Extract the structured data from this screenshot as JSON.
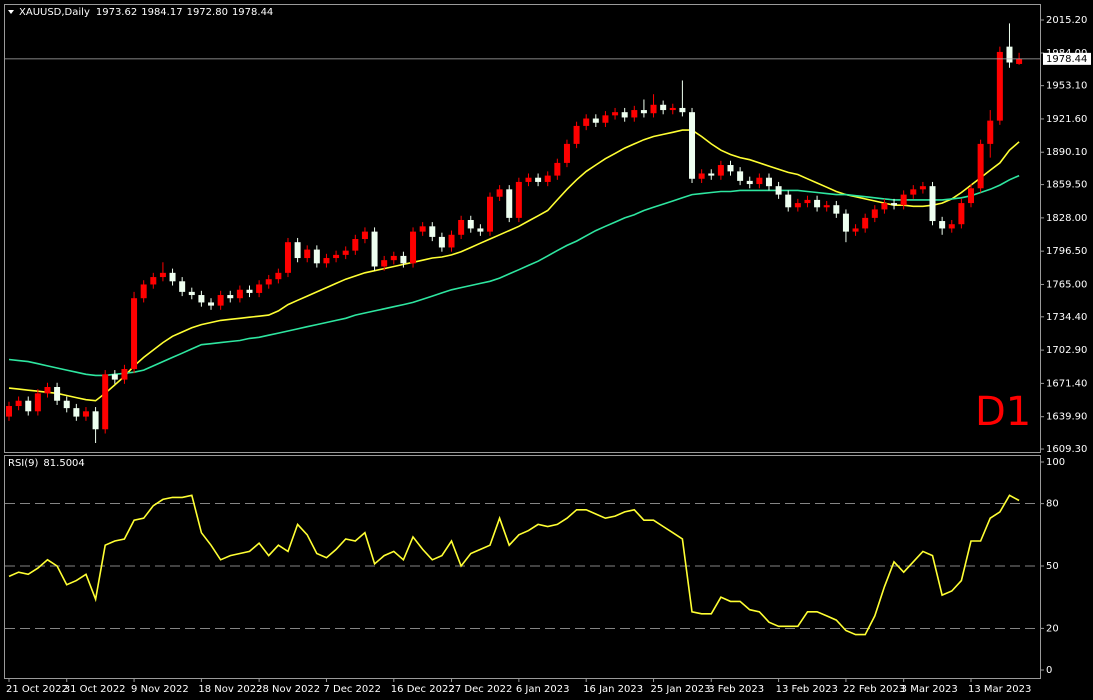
{
  "chart_data": [
    {
      "type": "candlestick",
      "title": "XAUUSD,Daily",
      "last_bar_labels": [
        "1973.62",
        "1984.17",
        "1972.80",
        "1978.44"
      ],
      "categories": [
        "21 Oct 2022",
        null,
        null,
        null,
        null,
        null,
        "31 Oct 2022",
        null,
        null,
        null,
        null,
        null,
        null,
        "9 Nov 2022",
        null,
        null,
        null,
        null,
        null,
        null,
        "18 Nov 2022",
        null,
        null,
        null,
        null,
        null,
        "28 Nov 2022",
        null,
        null,
        null,
        null,
        null,
        null,
        "7 Dec 2022",
        null,
        null,
        null,
        null,
        null,
        null,
        "16 Dec 2022",
        null,
        null,
        null,
        null,
        null,
        "27 Dec 2022",
        null,
        null,
        null,
        null,
        null,
        null,
        "6 Jan 2023",
        null,
        null,
        null,
        null,
        null,
        null,
        "16 Jan 2023",
        null,
        null,
        null,
        null,
        null,
        null,
        "25 Jan 2023",
        null,
        null,
        null,
        null,
        null,
        "3 Feb 2023",
        null,
        null,
        null,
        null,
        null,
        null,
        "13 Feb 2023",
        null,
        null,
        null,
        null,
        null,
        null,
        "22 Feb 2023",
        null,
        null,
        null,
        null,
        null,
        "3 Mar 2023",
        null,
        null,
        null,
        null,
        null,
        null,
        "13 Mar 2023",
        null,
        null,
        null,
        null,
        null
      ],
      "open": [
        1640,
        1650,
        1655,
        1645,
        1662,
        1668,
        1655,
        1648,
        1640,
        1645,
        1628,
        1680,
        1675,
        1685,
        1752,
        1765,
        1772,
        1776,
        1768,
        1758,
        1755,
        1748,
        1745,
        1755,
        1752,
        1760,
        1757,
        1765,
        1770,
        1776,
        1805,
        1790,
        1798,
        1785,
        1790,
        1793,
        1797,
        1808,
        1815,
        1782,
        1788,
        1792,
        1785,
        1815,
        1820,
        1810,
        1800,
        1812,
        1826,
        1818,
        1815,
        1848,
        1855,
        1828,
        1862,
        1866,
        1862,
        1868,
        1880,
        1898,
        1915,
        1922,
        1918,
        1925,
        1928,
        1923,
        1930,
        1927,
        1935,
        1930,
        1932,
        1928,
        1865,
        1870,
        1868,
        1878,
        1872,
        1863,
        1860,
        1866,
        1858,
        1850,
        1838,
        1842,
        1845,
        1838,
        1840,
        1832,
        1815,
        1818,
        1828,
        1836,
        1842,
        1840,
        1850,
        1855,
        1858,
        1825,
        1818,
        1822,
        1842,
        1856,
        1898,
        1920,
        1990,
        1973.62
      ],
      "high": [
        1654,
        1659,
        1659,
        1666,
        1672,
        1672,
        1659,
        1652,
        1649,
        1649,
        1684,
        1684,
        1689,
        1758,
        1769,
        1776,
        1786,
        1780,
        1772,
        1762,
        1759,
        1752,
        1759,
        1759,
        1764,
        1764,
        1769,
        1774,
        1780,
        1809,
        1809,
        1802,
        1802,
        1794,
        1797,
        1801,
        1812,
        1819,
        1819,
        1792,
        1796,
        1796,
        1819,
        1824,
        1824,
        1814,
        1816,
        1830,
        1830,
        1822,
        1852,
        1859,
        1859,
        1866,
        1870,
        1870,
        1872,
        1884,
        1902,
        1919,
        1926,
        1926,
        1929,
        1932,
        1932,
        1934,
        1940,
        1945,
        1939,
        1936,
        1958,
        1932,
        1874,
        1874,
        1882,
        1882,
        1876,
        1867,
        1870,
        1870,
        1862,
        1854,
        1846,
        1849,
        1849,
        1844,
        1844,
        1836,
        1822,
        1832,
        1840,
        1846,
        1846,
        1854,
        1859,
        1862,
        1862,
        1829,
        1826,
        1846,
        1860,
        1902,
        1930,
        1990,
        2012,
        1984.17
      ],
      "low": [
        1636,
        1646,
        1641,
        1641,
        1658,
        1651,
        1644,
        1636,
        1636,
        1615,
        1624,
        1671,
        1671,
        1681,
        1748,
        1761,
        1768,
        1764,
        1754,
        1751,
        1744,
        1741,
        1741,
        1748,
        1748,
        1753,
        1753,
        1761,
        1766,
        1772,
        1786,
        1786,
        1781,
        1781,
        1786,
        1789,
        1793,
        1804,
        1778,
        1778,
        1784,
        1781,
        1781,
        1811,
        1806,
        1796,
        1796,
        1808,
        1814,
        1811,
        1811,
        1844,
        1824,
        1824,
        1858,
        1858,
        1858,
        1864,
        1876,
        1894,
        1911,
        1914,
        1914,
        1921,
        1919,
        1919,
        1923,
        1923,
        1926,
        1926,
        1924,
        1861,
        1861,
        1864,
        1864,
        1868,
        1859,
        1856,
        1856,
        1854,
        1846,
        1834,
        1834,
        1838,
        1834,
        1834,
        1828,
        1805,
        1811,
        1814,
        1824,
        1832,
        1836,
        1836,
        1846,
        1851,
        1821,
        1812,
        1814,
        1818,
        1838,
        1852,
        1885,
        1916,
        1970,
        1972.8
      ],
      "close": [
        1650,
        1655,
        1645,
        1662,
        1668,
        1655,
        1648,
        1640,
        1645,
        1628,
        1680,
        1675,
        1685,
        1752,
        1765,
        1772,
        1776,
        1768,
        1758,
        1755,
        1748,
        1745,
        1755,
        1752,
        1760,
        1757,
        1765,
        1770,
        1776,
        1805,
        1790,
        1798,
        1785,
        1790,
        1793,
        1797,
        1808,
        1815,
        1782,
        1788,
        1792,
        1785,
        1815,
        1820,
        1810,
        1800,
        1812,
        1826,
        1818,
        1815,
        1848,
        1855,
        1828,
        1862,
        1866,
        1862,
        1868,
        1880,
        1898,
        1915,
        1922,
        1918,
        1925,
        1928,
        1923,
        1930,
        1927,
        1935,
        1930,
        1932,
        1928,
        1865,
        1870,
        1868,
        1878,
        1872,
        1863,
        1860,
        1866,
        1858,
        1850,
        1838,
        1842,
        1845,
        1838,
        1840,
        1832,
        1815,
        1818,
        1828,
        1836,
        1842,
        1840,
        1850,
        1855,
        1858,
        1825,
        1818,
        1822,
        1842,
        1856,
        1898,
        1920,
        1985,
        1975,
        1978.44
      ],
      "up_color": "#ff0000",
      "down_color": "#eefff0",
      "series": [
        {
          "color": "#ffff33",
          "values": [
            1667,
            1666,
            1665,
            1664,
            1663,
            1662,
            1660,
            1658,
            1656,
            1655,
            1662,
            1670,
            1678,
            1688,
            1696,
            1703,
            1710,
            1716,
            1720,
            1724,
            1727,
            1729,
            1731,
            1732,
            1733,
            1734,
            1735,
            1736,
            1740,
            1746,
            1750,
            1754,
            1758,
            1762,
            1766,
            1770,
            1773,
            1776,
            1778,
            1780,
            1782,
            1784,
            1786,
            1788,
            1790,
            1791,
            1793,
            1796,
            1800,
            1804,
            1808,
            1812,
            1816,
            1820,
            1825,
            1830,
            1835,
            1845,
            1855,
            1864,
            1872,
            1878,
            1884,
            1889,
            1894,
            1898,
            1902,
            1905,
            1907,
            1909,
            1911,
            1911,
            1905,
            1898,
            1892,
            1888,
            1885,
            1883,
            1880,
            1877,
            1874,
            1871,
            1869,
            1865,
            1861,
            1857,
            1853,
            1850,
            1848,
            1846,
            1844,
            1842,
            1840,
            1840,
            1839,
            1839,
            1840,
            1842,
            1846,
            1852,
            1859,
            1866,
            1873,
            1880,
            1892,
            1900
          ]
        },
        {
          "color": "#2ee6a0",
          "values": [
            1694,
            1693,
            1692,
            1690,
            1688,
            1686,
            1684,
            1682,
            1680,
            1679,
            1679,
            1680,
            1681,
            1682,
            1684,
            1688,
            1692,
            1696,
            1700,
            1704,
            1708,
            1709,
            1710,
            1711,
            1712,
            1714,
            1715,
            1717,
            1719,
            1721,
            1723,
            1725,
            1727,
            1729,
            1731,
            1733,
            1736,
            1738,
            1740,
            1742,
            1744,
            1746,
            1748,
            1751,
            1754,
            1757,
            1760,
            1762,
            1764,
            1766,
            1768,
            1771,
            1775,
            1779,
            1783,
            1787,
            1792,
            1797,
            1802,
            1806,
            1811,
            1816,
            1820,
            1824,
            1828,
            1831,
            1835,
            1838,
            1841,
            1844,
            1847,
            1850,
            1851,
            1852,
            1853,
            1853,
            1854,
            1854,
            1854,
            1854,
            1854,
            1854,
            1854,
            1853,
            1852,
            1851,
            1850,
            1850,
            1849,
            1848,
            1847,
            1846,
            1845,
            1845,
            1845,
            1845,
            1845,
            1845,
            1846,
            1847,
            1849,
            1852,
            1855,
            1859,
            1864,
            1868
          ]
        }
      ],
      "ylim": [
        1606.5,
        2029.4
      ],
      "yticks": [
        {
          "value": 2015.2,
          "label": "2015.20"
        },
        {
          "value": 1984,
          "label": "1984.00"
        },
        {
          "value": 1953.1,
          "label": "1953.10"
        },
        {
          "value": 1921.6,
          "label": "1921.60"
        },
        {
          "value": 1890.1,
          "label": "1890.10"
        },
        {
          "value": 1859.5,
          "label": "1859.50"
        },
        {
          "value": 1828,
          "label": "1828.00"
        },
        {
          "value": 1796.5,
          "label": "1796.50"
        },
        {
          "value": 1765,
          "label": "1765.00"
        },
        {
          "value": 1734.4,
          "label": "1734.40"
        },
        {
          "value": 1702.9,
          "label": "1702.90"
        },
        {
          "value": 1671.4,
          "label": "1671.40"
        },
        {
          "value": 1639.9,
          "label": "1639.90"
        },
        {
          "value": 1609.3,
          "label": "1609.30"
        }
      ],
      "annotation": "D1",
      "annotation_color": "#ff0000",
      "grid": false
    },
    {
      "type": "line",
      "title": "RSI(9)",
      "color": "#ffff33",
      "values": [
        45,
        47,
        46,
        49,
        53,
        50,
        41,
        43,
        46,
        34,
        60,
        62,
        63,
        72,
        73,
        79,
        82,
        83,
        83,
        84,
        66,
        60,
        53,
        55,
        56,
        57,
        61,
        55,
        60,
        57,
        70,
        65,
        56,
        54,
        58,
        63,
        62,
        66,
        51,
        55,
        57,
        53,
        64,
        58,
        53,
        55,
        62,
        50,
        56,
        58,
        60,
        73,
        60,
        65,
        67,
        70,
        69,
        70,
        73,
        77,
        77,
        75,
        73,
        74,
        76,
        77,
        72,
        72,
        69,
        66,
        63,
        28,
        27,
        27,
        35,
        33,
        33,
        29,
        28,
        23,
        21,
        21,
        21,
        28,
        28,
        26,
        24,
        19,
        17,
        17,
        26,
        40,
        52,
        47,
        52,
        57,
        55,
        36,
        38,
        43,
        62,
        62,
        73,
        76,
        84,
        81.5004
      ],
      "ylim": [
        0,
        100
      ],
      "yticks": [
        0,
        20,
        50,
        80,
        100
      ],
      "levels": [
        20,
        50,
        80
      ],
      "grid": false
    }
  ]
}
